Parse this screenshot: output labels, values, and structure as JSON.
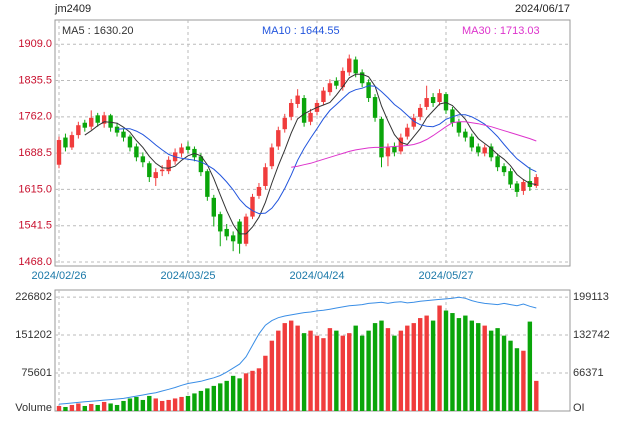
{
  "chart_data": [
    {
      "type": "candlestick",
      "title": "jm2409",
      "subtitle": "2024/06/17",
      "categories": [
        "2024/02/26",
        null,
        null,
        null,
        null,
        null,
        null,
        null,
        null,
        null,
        null,
        null,
        null,
        null,
        null,
        null,
        null,
        null,
        null,
        null,
        "2024/03/25",
        null,
        null,
        null,
        null,
        null,
        null,
        null,
        null,
        null,
        null,
        null,
        null,
        null,
        null,
        null,
        null,
        null,
        null,
        null,
        "2024/04/24",
        null,
        null,
        null,
        null,
        null,
        null,
        null,
        null,
        null,
        null,
        null,
        null,
        null,
        null,
        null,
        null,
        null,
        null,
        null,
        "2024/05/27",
        null,
        null,
        null,
        null,
        null,
        null,
        null,
        null,
        null,
        null,
        null,
        null,
        null,
        null
      ],
      "open": [
        1665,
        1720,
        1700,
        1725,
        1750,
        1742,
        1765,
        1748,
        1765,
        1742,
        1732,
        1722,
        1702,
        1682,
        1668,
        1638,
        1652,
        1652,
        1672,
        1688,
        1702,
        1697,
        1682,
        1652,
        1598,
        1565,
        1535,
        1522,
        1550,
        1505,
        1560,
        1602,
        1622,
        1662,
        1702,
        1737,
        1762,
        1788,
        1800,
        1752,
        1772,
        1792,
        1812,
        1835,
        1822,
        1852,
        1878,
        1852,
        1832,
        1802,
        1758,
        1682,
        1702,
        1692,
        1722,
        1742,
        1762,
        1782,
        1802,
        1792,
        1808,
        1777,
        1752,
        1732,
        1722,
        1702,
        1688,
        1702,
        1682,
        1662,
        1652,
        1627,
        1612,
        1632,
        1622
      ],
      "high": [
        1722,
        1728,
        1732,
        1752,
        1756,
        1775,
        1770,
        1772,
        1768,
        1750,
        1738,
        1726,
        1708,
        1690,
        1672,
        1658,
        1664,
        1682,
        1698,
        1708,
        1712,
        1702,
        1688,
        1656,
        1604,
        1570,
        1545,
        1530,
        1555,
        1566,
        1606,
        1628,
        1668,
        1708,
        1742,
        1768,
        1798,
        1818,
        1806,
        1778,
        1796,
        1822,
        1838,
        1842,
        1862,
        1888,
        1884,
        1858,
        1838,
        1808,
        1762,
        1708,
        1710,
        1728,
        1748,
        1768,
        1788,
        1825,
        1810,
        1818,
        1812,
        1782,
        1758,
        1738,
        1728,
        1708,
        1706,
        1708,
        1688,
        1668,
        1658,
        1632,
        1636,
        1660,
        1646
      ],
      "low": [
        1658,
        1692,
        1695,
        1718,
        1732,
        1736,
        1742,
        1740,
        1732,
        1722,
        1712,
        1692,
        1672,
        1660,
        1630,
        1622,
        1642,
        1646,
        1665,
        1680,
        1688,
        1672,
        1642,
        1592,
        1540,
        1500,
        1512,
        1490,
        1485,
        1500,
        1555,
        1596,
        1615,
        1656,
        1695,
        1730,
        1755,
        1780,
        1742,
        1745,
        1765,
        1785,
        1805,
        1818,
        1815,
        1845,
        1842,
        1822,
        1792,
        1752,
        1660,
        1662,
        1682,
        1686,
        1716,
        1736,
        1755,
        1776,
        1782,
        1785,
        1768,
        1742,
        1722,
        1712,
        1692,
        1682,
        1682,
        1672,
        1652,
        1642,
        1618,
        1600,
        1604,
        1612,
        1618
      ],
      "close": [
        1715,
        1700,
        1725,
        1745,
        1740,
        1760,
        1750,
        1765,
        1740,
        1730,
        1720,
        1700,
        1680,
        1670,
        1640,
        1650,
        1655,
        1675,
        1690,
        1700,
        1695,
        1680,
        1650,
        1600,
        1560,
        1530,
        1520,
        1510,
        1505,
        1560,
        1600,
        1620,
        1660,
        1700,
        1735,
        1760,
        1790,
        1805,
        1750,
        1770,
        1790,
        1815,
        1830,
        1825,
        1855,
        1880,
        1850,
        1830,
        1800,
        1760,
        1680,
        1700,
        1690,
        1720,
        1740,
        1760,
        1780,
        1800,
        1790,
        1810,
        1775,
        1750,
        1730,
        1720,
        1700,
        1690,
        1700,
        1680,
        1660,
        1650,
        1625,
        1610,
        1630,
        1620,
        1640
      ],
      "up_color": "#f03c3c",
      "down_color": "#0aa50a",
      "lines": [
        {
          "name": "MA5",
          "label": "MA5 : 1630.20",
          "color": "#333333",
          "values": [
            null,
            null,
            null,
            null,
            1725,
            1734,
            1744,
            1752,
            1751,
            1749,
            1741,
            1731,
            1714,
            1700,
            1682,
            1668,
            1659,
            1658,
            1662,
            1674,
            1683,
            1688,
            1683,
            1665,
            1637,
            1604,
            1572,
            1544,
            1525,
            1525,
            1539,
            1559,
            1589,
            1628,
            1663,
            1695,
            1729,
            1758,
            1768,
            1775,
            1781,
            1786,
            1791,
            1806,
            1823,
            1841,
            1848,
            1848,
            1843,
            1824,
            1784,
            1754,
            1726,
            1710,
            1706,
            1722,
            1738,
            1760,
            1774,
            1788,
            1791,
            1785,
            1771,
            1757,
            1735,
            1718,
            1708,
            1698,
            1686,
            1676,
            1663,
            1645,
            1635,
            1627,
            1625
          ]
        },
        {
          "name": "MA10",
          "label": "MA10 : 1644.55",
          "color": "#2255dd",
          "values": [
            null,
            null,
            null,
            null,
            null,
            null,
            null,
            null,
            null,
            1737,
            1738,
            1738,
            1733,
            1726,
            1716,
            1705,
            1695,
            1686,
            1681,
            1678,
            1676,
            1674,
            1671,
            1664,
            1656,
            1644,
            1630,
            1614,
            1595,
            1581,
            1572,
            1566,
            1567,
            1577,
            1594,
            1617,
            1644,
            1674,
            1698,
            1719,
            1738,
            1758,
            1775,
            1787,
            1799,
            1811,
            1817,
            1820,
            1825,
            1824,
            1813,
            1801,
            1787,
            1777,
            1765,
            1753,
            1746,
            1743,
            1742,
            1747,
            1757,
            1762,
            1766,
            1766,
            1762,
            1755,
            1747,
            1735,
            1722,
            1706,
            1691,
            1677,
            1667,
            1657,
            1651
          ]
        },
        {
          "name": "MA30",
          "label": "MA30 : 1713.03",
          "color": "#dd33cc",
          "values": [
            null,
            null,
            null,
            null,
            null,
            null,
            null,
            null,
            null,
            null,
            null,
            null,
            null,
            null,
            null,
            null,
            null,
            null,
            null,
            null,
            null,
            null,
            null,
            null,
            null,
            null,
            null,
            null,
            null,
            null,
            null,
            null,
            null,
            null,
            null,
            null,
            1660,
            1662,
            1665,
            1668,
            1672,
            1676,
            1680,
            1684,
            1688,
            1692,
            1695,
            1697,
            1699,
            1700,
            1700,
            1701,
            1702,
            1703,
            1704,
            1706,
            1710,
            1716,
            1724,
            1733,
            1742,
            1750,
            1752,
            1752,
            1750,
            1748,
            1745,
            1742,
            1738,
            1734,
            1730,
            1726,
            1722,
            1718,
            1713
          ]
        }
      ],
      "ylim": [
        1460,
        1958
      ],
      "yticks": [
        {
          "value": 1468,
          "label": "1468.0"
        },
        1541.5,
        {
          "value": 1615,
          "label": "1615.0"
        },
        1688.5,
        {
          "value": 1762,
          "label": "1762.0"
        },
        1835.5,
        {
          "value": 1909,
          "label": "1909.0"
        }
      ],
      "grid": true
    },
    {
      "type": "volume",
      "series": [
        {
          "name": "Volume",
          "values": [
            10000,
            8000,
            12000,
            15000,
            10000,
            14000,
            12000,
            18000,
            15000,
            12000,
            20000,
            25000,
            28000,
            22000,
            30000,
            25000,
            20000,
            22000,
            25000,
            28000,
            30000,
            35000,
            40000,
            45000,
            50000,
            55000,
            60000,
            70000,
            65000,
            75000,
            80000,
            85000,
            110000,
            140000,
            160000,
            175000,
            180000,
            170000,
            155000,
            160000,
            150000,
            145000,
            165000,
            160000,
            150000,
            155000,
            170000,
            150000,
            160000,
            175000,
            180000,
            165000,
            150000,
            160000,
            170000,
            175000,
            185000,
            190000,
            180000,
            210000,
            200000,
            195000,
            185000,
            190000,
            180000,
            175000,
            170000,
            160000,
            165000,
            150000,
            140000,
            125000,
            120000,
            178000,
            60000
          ]
        },
        {
          "name": "OI",
          "axis": "y2",
          "color": "#3a8ee6",
          "values": [
            12000,
            13000,
            14000,
            15000,
            16000,
            17000,
            18000,
            19000,
            20000,
            21000,
            22000,
            24000,
            26000,
            28000,
            30000,
            32000,
            35000,
            38000,
            41000,
            45000,
            48000,
            50000,
            52000,
            55000,
            58000,
            62000,
            68000,
            75000,
            82000,
            95000,
            115000,
            135000,
            150000,
            158000,
            163000,
            166000,
            168000,
            170000,
            172000,
            173000,
            175000,
            176000,
            178000,
            180000,
            182000,
            184000,
            185000,
            186000,
            188000,
            189000,
            190000,
            188000,
            190000,
            191000,
            189000,
            190000,
            192000,
            193000,
            194000,
            195000,
            196000,
            197000,
            199000,
            197000,
            193000,
            190000,
            188000,
            187000,
            186000,
            188000,
            186000,
            184000,
            187000,
            183000,
            180000
          ]
        }
      ],
      "ylim": [
        0,
        240900
      ],
      "yticks": [
        75601,
        151202,
        226802
      ],
      "y2lim": [
        0,
        211500
      ],
      "y2ticks": [
        66371,
        132742,
        199113
      ],
      "grid": true
    }
  ]
}
